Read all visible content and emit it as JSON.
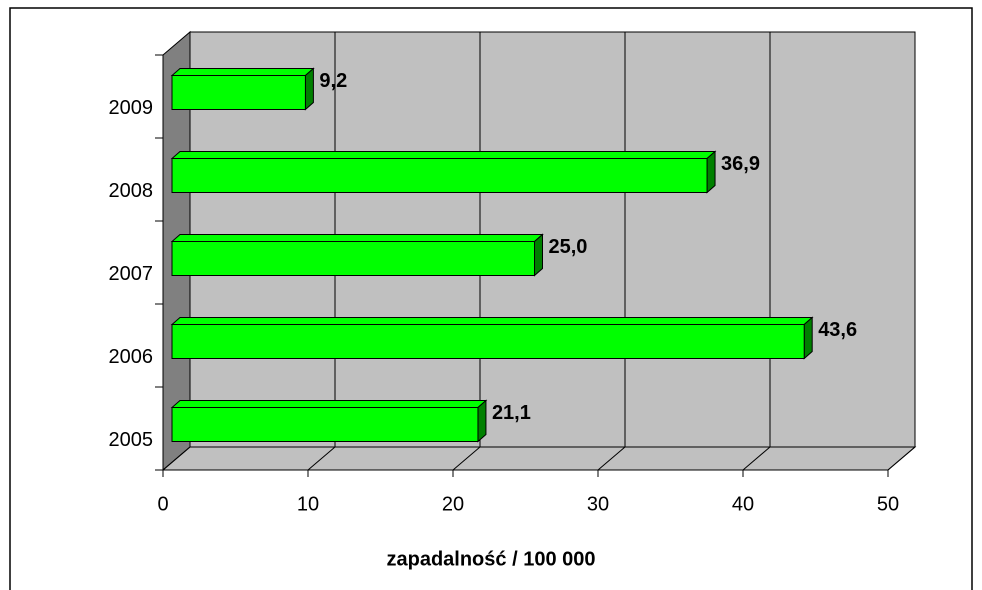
{
  "chart_data": {
    "type": "bar3d_horizontal",
    "categories": [
      "2005",
      "2006",
      "2007",
      "2008",
      "2009"
    ],
    "values": [
      21.1,
      43.6,
      25.0,
      36.9,
      9.2
    ],
    "value_labels": [
      "21,1",
      "43,6",
      "25,0",
      "36,9",
      "9,2"
    ],
    "color": "#00ff00",
    "xlim": [
      0,
      50
    ],
    "xticks": [
      0,
      10,
      20,
      30,
      40,
      50
    ],
    "x_label": "zapadalność / 100 000",
    "grid": true
  }
}
